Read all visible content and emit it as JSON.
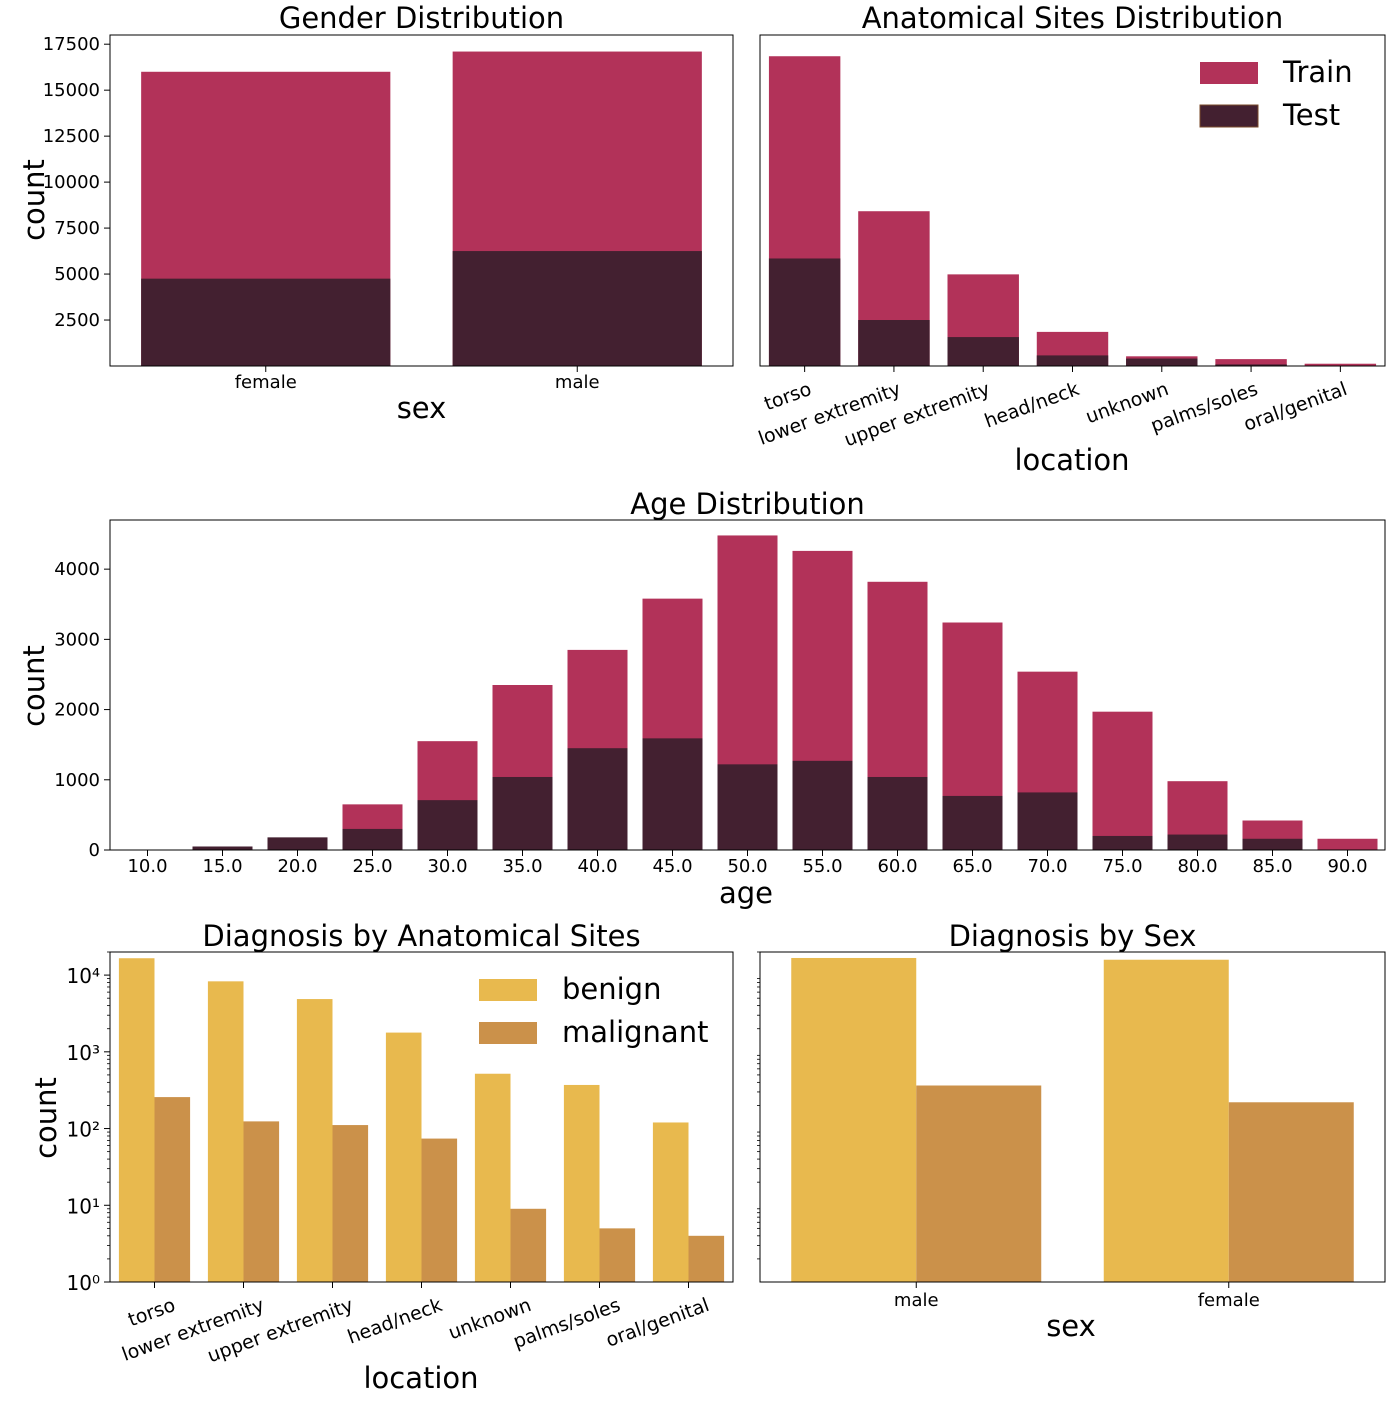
{
  "colors": {
    "train": "#b23259",
    "test": "#432030",
    "benign": "#e8b94e",
    "malignant": "#cb914a"
  },
  "chart_data": [
    {
      "id": "gender",
      "type": "bar",
      "overlay": true,
      "title": "Gender Distribution",
      "xlabel": "sex",
      "ylabel": "count",
      "categories": [
        "female",
        "male"
      ],
      "series": [
        {
          "name": "Train",
          "values": [
            16000,
            17100
          ]
        },
        {
          "name": "Test",
          "values": [
            4750,
            6250
          ]
        }
      ],
      "yticks": [
        2500,
        5000,
        7500,
        10000,
        12500,
        15000,
        17500
      ],
      "ylim": [
        0,
        18000
      ]
    },
    {
      "id": "sites",
      "type": "bar",
      "overlay": true,
      "title": "Anatomical Sites Distribution",
      "xlabel": "location",
      "ylabel": "",
      "categories": [
        "torso",
        "lower extremity",
        "upper extremity",
        "head/neck",
        "unknown",
        "palms/soles",
        "oral/genital"
      ],
      "series": [
        {
          "name": "Train",
          "values": [
            16845,
            8417,
            4983,
            1855,
            527,
            375,
            124
          ]
        },
        {
          "name": "Test",
          "values": [
            5847,
            2501,
            1573,
            576,
            404,
            86,
            26
          ]
        }
      ],
      "legend": [
        "Train",
        "Test"
      ],
      "legend_position": "top-right",
      "ylim": [
        0,
        18000
      ]
    },
    {
      "id": "age",
      "type": "bar",
      "overlay": true,
      "title": "Age Distribution",
      "xlabel": "age",
      "ylabel": "count",
      "categories": [
        "10.0",
        "15.0",
        "20.0",
        "25.0",
        "30.0",
        "35.0",
        "40.0",
        "45.0",
        "50.0",
        "55.0",
        "60.0",
        "65.0",
        "70.0",
        "75.0",
        "80.0",
        "85.0",
        "90.0"
      ],
      "series": [
        {
          "name": "Train",
          "values": [
            2,
            40,
            170,
            650,
            1550,
            2350,
            2850,
            3580,
            4480,
            4260,
            3820,
            3240,
            2540,
            1970,
            980,
            420,
            160
          ]
        },
        {
          "name": "Test",
          "values": [
            5,
            50,
            180,
            300,
            710,
            1040,
            1450,
            1590,
            1220,
            1270,
            1040,
            770,
            820,
            200,
            220,
            160,
            0
          ]
        }
      ],
      "yticks": [
        0,
        1000,
        2000,
        3000,
        4000
      ],
      "ylim": [
        0,
        4700
      ]
    },
    {
      "id": "diag_sites",
      "type": "bar",
      "grouped": true,
      "log_y": true,
      "title": "Diagnosis by Anatomical Sites",
      "xlabel": "location",
      "ylabel": "count",
      "categories": [
        "torso",
        "lower extremity",
        "upper extremity",
        "head/neck",
        "unknown",
        "palms/soles",
        "oral/genital"
      ],
      "series": [
        {
          "name": "benign",
          "values": [
            16588,
            8293,
            4872,
            1781,
            518,
            370,
            120
          ]
        },
        {
          "name": "malignant",
          "values": [
            257,
            124,
            111,
            74,
            9,
            5,
            4
          ]
        }
      ],
      "legend": [
        "benign",
        "malignant"
      ],
      "legend_position": "top-right",
      "yticks": [
        "10⁰",
        "10¹",
        "10²",
        "10³",
        "10⁴"
      ],
      "ylim": [
        1,
        20000
      ]
    },
    {
      "id": "diag_sex",
      "type": "bar",
      "grouped": true,
      "log_y": true,
      "title": "Diagnosis by Sex",
      "xlabel": "sex",
      "ylabel": "",
      "categories": [
        "male",
        "female"
      ],
      "series": [
        {
          "name": "benign",
          "values": [
            16716,
            15862
          ]
        },
        {
          "name": "malignant",
          "values": [
            364,
            220
          ]
        }
      ],
      "ylim": [
        1,
        20000
      ]
    }
  ]
}
